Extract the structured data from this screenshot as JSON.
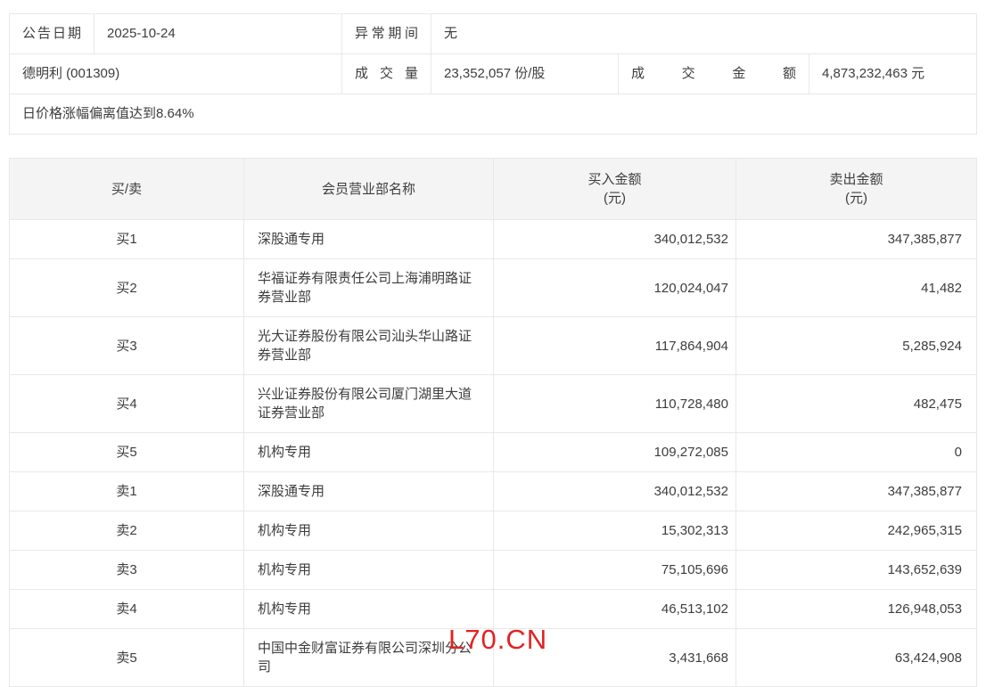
{
  "info": {
    "announce_date_label": "公告日期",
    "announce_date": "2025-10-24",
    "abnormal_period_label": "异常期间",
    "abnormal_period": "无",
    "stock_name": "德明利 (001309)",
    "volume_label": "成交量",
    "volume": "23,352,057 份/股",
    "turnover_label": "成交金额",
    "turnover": "4,873,232,463 元",
    "reason": "日价格涨幅偏离值达到8.64%"
  },
  "table": {
    "headers": {
      "side": "买/卖",
      "branch": "会员营业部名称",
      "buy": "买入金额",
      "sell": "卖出金额",
      "unit": "(元)"
    },
    "rows": [
      {
        "side": "买1",
        "branch": "深股通专用",
        "buy": "340,012,532",
        "sell": "347,385,877"
      },
      {
        "side": "买2",
        "branch": "华福证券有限责任公司上海浦明路证券营业部",
        "buy": "120,024,047",
        "sell": "41,482"
      },
      {
        "side": "买3",
        "branch": "光大证券股份有限公司汕头华山路证券营业部",
        "buy": "117,864,904",
        "sell": "5,285,924"
      },
      {
        "side": "买4",
        "branch": "兴业证券股份有限公司厦门湖里大道证券营业部",
        "buy": "110,728,480",
        "sell": "482,475"
      },
      {
        "side": "买5",
        "branch": "机构专用",
        "buy": "109,272,085",
        "sell": "0"
      },
      {
        "side": "卖1",
        "branch": "深股通专用",
        "buy": "340,012,532",
        "sell": "347,385,877"
      },
      {
        "side": "卖2",
        "branch": "机构专用",
        "buy": "15,302,313",
        "sell": "242,965,315"
      },
      {
        "side": "卖3",
        "branch": "机构专用",
        "buy": "75,105,696",
        "sell": "143,652,639"
      },
      {
        "side": "卖4",
        "branch": "机构专用",
        "buy": "46,513,102",
        "sell": "126,948,053"
      },
      {
        "side": "卖5",
        "branch": "中国中金财富证券有限公司深圳分公司",
        "buy": "3,431,668",
        "sell": "63,424,908"
      }
    ]
  },
  "watermark": "L70.CN",
  "colors": {
    "border": "#e8e8e8",
    "header_bg": "#f4f4f4",
    "text": "#3d3d3d",
    "watermark_red": "#e32221"
  }
}
